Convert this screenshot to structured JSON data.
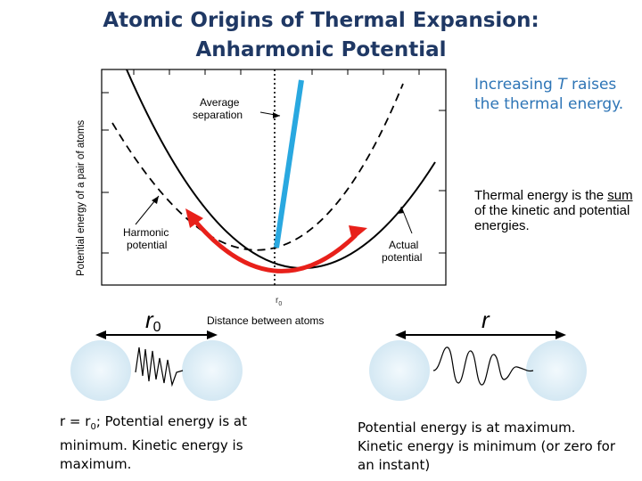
{
  "title": {
    "line1": "Atomic Origins of Thermal Expansion:",
    "line2": "Anharmonic Potential"
  },
  "notes": {
    "increase_pre": "Increasing ",
    "increase_var": "T",
    "increase_post": " raises the thermal energy.",
    "thermal_pre": "Thermal energy is the ",
    "thermal_sum": "sum",
    "thermal_post": " of the kinetic and potential energies."
  },
  "graph": {
    "ylabel": "Potential energy of a pair of atoms",
    "xlabel": "Distance between atoms",
    "r0_tick": "r",
    "r0_tick_sub": "0",
    "avg_sep_line1": "Average",
    "avg_sep_line2": "separation",
    "harmonic_line1": "Harmonic",
    "harmonic_line2": "potential",
    "actual_line1": "Actual",
    "actual_line2": "potential"
  },
  "atoms": {
    "left_label": "r",
    "left_label_sub": "0",
    "right_label": "r"
  },
  "captions": {
    "left_pre": "r = r",
    "left_sub": "0",
    "left_post": "; Potential energy is at minimum. Kinetic energy is maximum.",
    "right": "Potential energy is at maximum. Kinetic energy is minimum (or zero for an instant)"
  },
  "colors": {
    "title": "#1f3864",
    "note": "#2e75b6",
    "cyan_bar": "#29a8e0",
    "red_arc": "#e8201a",
    "atom": "#dcecf5"
  }
}
